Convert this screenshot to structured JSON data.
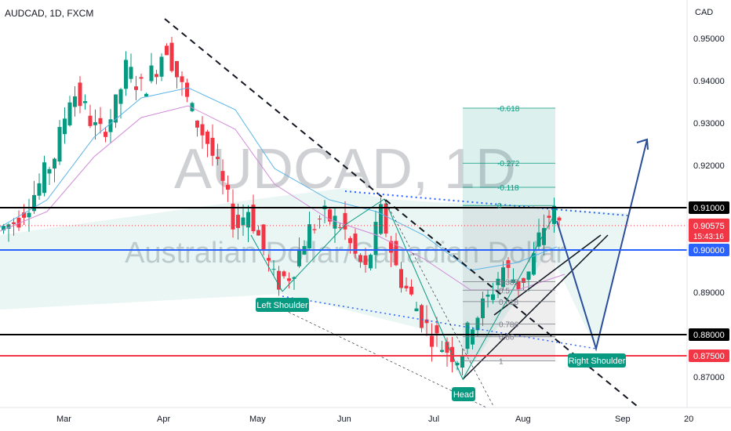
{
  "chart_data": {
    "type": "candlestick",
    "symbol_line": "AUDCAD, 1D, FXCM",
    "currency": "CAD",
    "watermark": {
      "symbol": "AUDCAD, 1D",
      "name": "Australian Dollar/Canadian Dollar"
    },
    "ylim": [
      0.865,
      0.9535
    ],
    "y_ticks": [
      "0.95000",
      "0.94000",
      "0.93000",
      "0.92000",
      "0.89000",
      "0.87000"
    ],
    "x_ticks": [
      "Mar",
      "Apr",
      "May",
      "Jun",
      "Jul",
      "Aug",
      "Sep",
      "20"
    ],
    "levels": [
      {
        "label": "0.91000",
        "value": 0.91,
        "color": "#000000",
        "badge_bg": "#000000"
      },
      {
        "label": "0.90000",
        "value": 0.9,
        "color": "#2962ff",
        "badge_bg": "#2962ff"
      },
      {
        "label": "0.88000",
        "value": 0.88,
        "color": "#000000",
        "badge_bg": "#000000"
      },
      {
        "label": "0.87500",
        "value": 0.875,
        "color": "#f23645",
        "badge_bg": "#f23645"
      }
    ],
    "current_price": {
      "label": "0.90575",
      "countdown": "15:43:16",
      "value": 0.90575,
      "color": "#f23645"
    },
    "fib_projection": [
      {
        "label": "-0.618",
        "value": 0.9335
      },
      {
        "label": "-0.272",
        "value": 0.9205
      },
      {
        "label": "-0.118",
        "value": 0.9148
      },
      {
        "label": "0",
        "value": 0.9105
      }
    ],
    "fib_retracement": [
      {
        "label": "0.382",
        "value": 0.8925
      },
      {
        "label": "0.5",
        "value": 0.8905
      },
      {
        "label": "0.618",
        "value": 0.8878
      },
      {
        "label": "0.786",
        "value": 0.8825
      },
      {
        "label": "0.86",
        "value": 0.8795
      },
      {
        "label": "1",
        "value": 0.8738
      }
    ],
    "annotations": [
      {
        "label": "Left Shoulder"
      },
      {
        "label": "Head"
      },
      {
        "label": "Right Shoulder"
      }
    ],
    "colors": {
      "up": "#089981",
      "down": "#f23645",
      "label_bg": "#089981",
      "projection": "#2a4e9a"
    }
  }
}
